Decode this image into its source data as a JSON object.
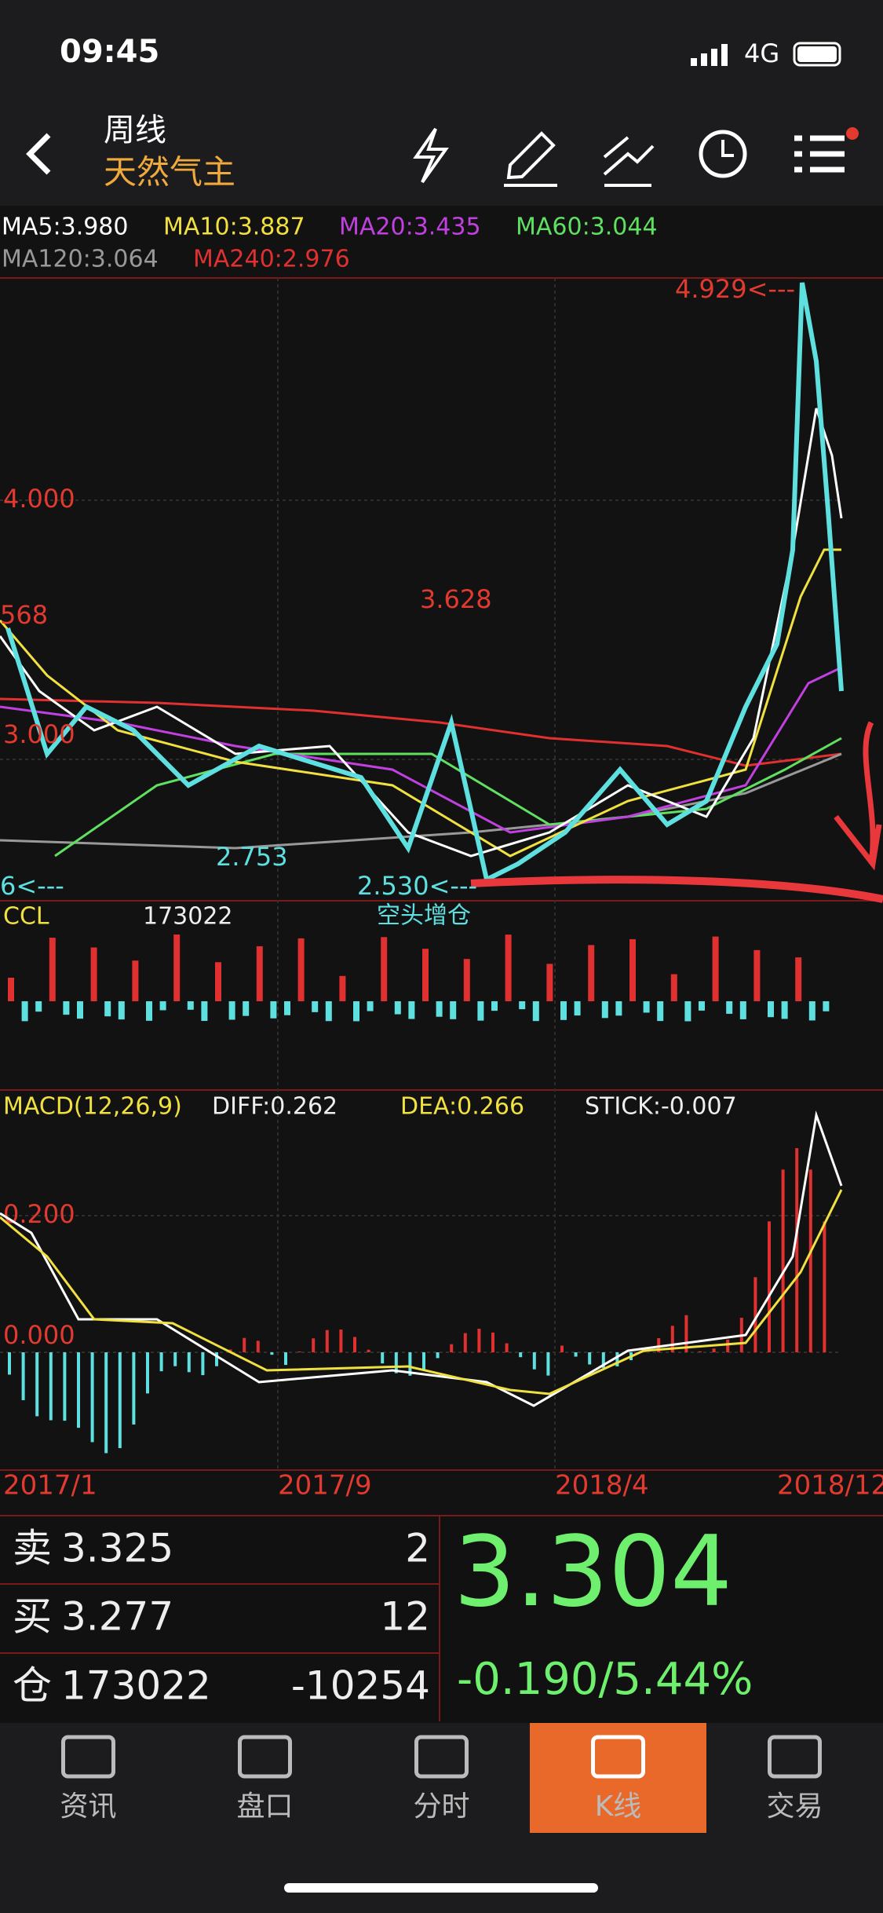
{
  "status_bar": {
    "time": "09:45",
    "network": "4G"
  },
  "header": {
    "period": "周线",
    "instrument": "天然气主"
  },
  "indicators": [
    "MA5:3.980",
    "MA10:3.887",
    "MA20:3.435",
    "MA60:3.044",
    "MA120:3.064",
    "MA240:2.976"
  ],
  "price_chart": {
    "axis_labels": [
      "4.000",
      "3.000"
    ],
    "annotations": [
      "4.929<---",
      "3.628",
      "568",
      "2.753",
      "2.530<---",
      "6<---",
      "空头增仓"
    ]
  },
  "ccl": {
    "label": "CCL",
    "value": "173022"
  },
  "macd": {
    "label": "MACD(12,26,9)",
    "diff": "DIFF:0.262",
    "dea": "DEA:0.266",
    "stick": "STICK:-0.007",
    "axis_labels": [
      "0.200",
      "0.000"
    ]
  },
  "dates": [
    "2017/1",
    "2017/9",
    "2018/4",
    "2018/12"
  ],
  "quote": {
    "sell": {
      "label": "卖",
      "price": "3.325",
      "volume": "2"
    },
    "buy": {
      "label": "买",
      "price": "3.277",
      "volume": "12"
    },
    "position": {
      "label": "仓",
      "value": "173022",
      "change": "-10254"
    },
    "last": "3.304",
    "change": "-0.190/5.44%"
  },
  "tabs": [
    "资讯",
    "盘口",
    "分时",
    "K线",
    "交易"
  ]
}
